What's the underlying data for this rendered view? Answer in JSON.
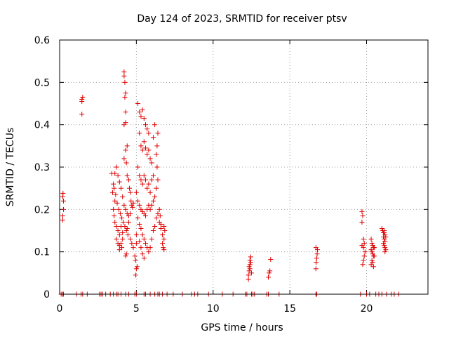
{
  "chart_data": {
    "type": "scatter",
    "title": "Day 124 of 2023, SRMTID for receiver ptsv",
    "xlabel": "GPS time / hours",
    "ylabel": "SRMTID / TECUs",
    "xlim": [
      0,
      24
    ],
    "ylim": [
      0,
      0.6
    ],
    "x_ticks": [
      0,
      5,
      10,
      15,
      20
    ],
    "y_ticks": [
      0,
      0.1,
      0.2,
      0.3,
      0.4,
      0.5,
      0.6
    ],
    "x_tick_labels": [
      "0",
      "5",
      "10",
      "15",
      "20"
    ],
    "y_tick_labels": [
      "0",
      "0.1",
      "0.2",
      "0.3",
      "0.4",
      "0.5",
      "0.6"
    ],
    "grid": true,
    "marker": "plus",
    "color": "#e00000",
    "series": [
      {
        "name": "SRMTID",
        "points": [
          [
            0.1,
            0.0
          ],
          [
            0.2,
            0.0
          ],
          [
            0.25,
            0.0
          ],
          [
            0.2,
            0.175
          ],
          [
            0.2,
            0.185
          ],
          [
            0.25,
            0.2
          ],
          [
            0.25,
            0.22
          ],
          [
            0.2,
            0.23
          ],
          [
            0.22,
            0.238
          ],
          [
            1.1,
            0.0
          ],
          [
            1.4,
            0.0
          ],
          [
            1.5,
            0.0
          ],
          [
            1.8,
            0.0
          ],
          [
            2.6,
            0.0
          ],
          [
            2.7,
            0.0
          ],
          [
            2.8,
            0.0
          ],
          [
            3.0,
            0.0
          ],
          [
            1.45,
            0.425
          ],
          [
            1.45,
            0.455
          ],
          [
            1.45,
            0.46
          ],
          [
            1.5,
            0.465
          ],
          [
            3.3,
            0.0
          ],
          [
            3.5,
            0.0
          ],
          [
            3.7,
            0.0
          ],
          [
            3.8,
            0.0
          ],
          [
            4.0,
            0.0
          ],
          [
            4.3,
            0.0
          ],
          [
            4.5,
            0.0
          ],
          [
            4.9,
            0.0
          ],
          [
            5.0,
            0.0
          ],
          [
            5.5,
            0.0
          ],
          [
            5.6,
            0.0
          ],
          [
            5.9,
            0.0
          ],
          [
            6.2,
            0.0
          ],
          [
            6.4,
            0.0
          ],
          [
            6.5,
            0.0
          ],
          [
            6.7,
            0.0
          ],
          [
            7.0,
            0.0
          ],
          [
            7.4,
            0.0
          ],
          [
            8.0,
            0.0
          ],
          [
            8.6,
            0.0
          ],
          [
            8.8,
            0.0
          ],
          [
            9.0,
            0.0
          ],
          [
            9.7,
            0.0
          ],
          [
            10.6,
            0.0
          ],
          [
            11.3,
            0.0
          ],
          [
            12.1,
            0.0
          ],
          [
            12.2,
            0.0
          ],
          [
            12.5,
            0.0
          ],
          [
            12.6,
            0.0
          ],
          [
            12.7,
            0.0
          ],
          [
            13.5,
            0.0
          ],
          [
            13.6,
            0.0
          ],
          [
            14.3,
            0.0
          ],
          [
            16.7,
            0.0
          ],
          [
            16.75,
            0.0
          ],
          [
            19.6,
            0.0
          ],
          [
            20.0,
            0.0
          ],
          [
            20.2,
            0.0
          ],
          [
            20.6,
            0.0
          ],
          [
            20.8,
            0.0
          ],
          [
            21.0,
            0.0
          ],
          [
            21.3,
            0.0
          ],
          [
            21.6,
            0.0
          ],
          [
            21.8,
            0.0
          ],
          [
            22.1,
            0.0
          ],
          [
            4.2,
            0.525
          ],
          [
            4.2,
            0.515
          ],
          [
            4.25,
            0.5
          ],
          [
            4.3,
            0.475
          ],
          [
            4.25,
            0.465
          ],
          [
            4.3,
            0.43
          ],
          [
            4.2,
            0.4
          ],
          [
            4.3,
            0.405
          ],
          [
            3.4,
            0.285
          ],
          [
            3.5,
            0.26
          ],
          [
            3.45,
            0.24
          ],
          [
            3.6,
            0.22
          ],
          [
            3.5,
            0.2
          ],
          [
            3.55,
            0.185
          ],
          [
            3.6,
            0.17
          ],
          [
            3.7,
            0.16
          ],
          [
            3.8,
            0.15
          ],
          [
            3.9,
            0.14
          ],
          [
            4.0,
            0.12
          ],
          [
            4.05,
            0.11
          ],
          [
            3.9,
            0.105
          ],
          [
            4.1,
            0.13
          ],
          [
            3.6,
            0.285
          ],
          [
            3.7,
            0.3
          ],
          [
            3.8,
            0.28
          ],
          [
            3.9,
            0.265
          ],
          [
            4.0,
            0.25
          ],
          [
            4.1,
            0.23
          ],
          [
            4.2,
            0.21
          ],
          [
            4.3,
            0.2
          ],
          [
            4.4,
            0.19
          ],
          [
            4.5,
            0.185
          ],
          [
            3.55,
            0.25
          ],
          [
            3.65,
            0.235
          ],
          [
            3.75,
            0.215
          ],
          [
            3.85,
            0.2
          ],
          [
            3.95,
            0.19
          ],
          [
            4.05,
            0.18
          ],
          [
            4.15,
            0.17
          ],
          [
            4.25,
            0.16
          ],
          [
            4.35,
            0.15
          ],
          [
            4.45,
            0.14
          ],
          [
            3.7,
            0.13
          ],
          [
            3.8,
            0.12
          ],
          [
            3.9,
            0.115
          ],
          [
            4.0,
            0.16
          ],
          [
            4.1,
            0.145
          ],
          [
            4.2,
            0.32
          ],
          [
            4.3,
            0.34
          ],
          [
            4.4,
            0.35
          ],
          [
            4.35,
            0.31
          ],
          [
            4.4,
            0.28
          ],
          [
            4.5,
            0.27
          ],
          [
            4.55,
            0.25
          ],
          [
            4.6,
            0.24
          ],
          [
            4.65,
            0.22
          ],
          [
            4.7,
            0.21
          ],
          [
            4.75,
            0.205
          ],
          [
            4.8,
            0.215
          ],
          [
            4.6,
            0.19
          ],
          [
            4.5,
            0.17
          ],
          [
            4.4,
            0.155
          ],
          [
            4.3,
            0.09
          ],
          [
            4.35,
            0.095
          ],
          [
            4.6,
            0.13
          ],
          [
            4.7,
            0.12
          ],
          [
            4.8,
            0.11
          ],
          [
            4.9,
            0.09
          ],
          [
            4.95,
            0.08
          ],
          [
            5.0,
            0.06
          ],
          [
            4.95,
            0.045
          ],
          [
            5.05,
            0.065
          ],
          [
            5.1,
            0.45
          ],
          [
            5.2,
            0.43
          ],
          [
            5.3,
            0.42
          ],
          [
            5.4,
            0.435
          ],
          [
            5.5,
            0.415
          ],
          [
            5.6,
            0.4
          ],
          [
            5.7,
            0.39
          ],
          [
            5.8,
            0.38
          ],
          [
            5.2,
            0.38
          ],
          [
            5.3,
            0.35
          ],
          [
            5.4,
            0.34
          ],
          [
            5.5,
            0.36
          ],
          [
            5.6,
            0.345
          ],
          [
            5.7,
            0.33
          ],
          [
            5.8,
            0.34
          ],
          [
            5.9,
            0.32
          ],
          [
            6.0,
            0.31
          ],
          [
            5.1,
            0.3
          ],
          [
            5.2,
            0.28
          ],
          [
            5.3,
            0.27
          ],
          [
            5.4,
            0.26
          ],
          [
            5.5,
            0.28
          ],
          [
            5.6,
            0.27
          ],
          [
            5.7,
            0.25
          ],
          [
            5.8,
            0.26
          ],
          [
            5.9,
            0.24
          ],
          [
            6.0,
            0.27
          ],
          [
            6.1,
            0.28
          ],
          [
            5.0,
            0.24
          ],
          [
            5.1,
            0.22
          ],
          [
            5.2,
            0.21
          ],
          [
            5.3,
            0.2
          ],
          [
            5.4,
            0.195
          ],
          [
            5.5,
            0.19
          ],
          [
            5.6,
            0.185
          ],
          [
            5.7,
            0.2
          ],
          [
            5.8,
            0.21
          ],
          [
            5.9,
            0.2
          ],
          [
            6.0,
            0.21
          ],
          [
            6.1,
            0.22
          ],
          [
            6.2,
            0.23
          ],
          [
            6.3,
            0.25
          ],
          [
            6.4,
            0.27
          ],
          [
            6.35,
            0.3
          ],
          [
            6.3,
            0.33
          ],
          [
            6.35,
            0.35
          ],
          [
            6.4,
            0.38
          ],
          [
            6.2,
            0.4
          ],
          [
            6.1,
            0.37
          ],
          [
            5.1,
            0.18
          ],
          [
            5.2,
            0.165
          ],
          [
            5.3,
            0.155
          ],
          [
            5.4,
            0.14
          ],
          [
            5.5,
            0.13
          ],
          [
            5.6,
            0.12
          ],
          [
            5.7,
            0.11
          ],
          [
            5.8,
            0.1
          ],
          [
            5.9,
            0.11
          ],
          [
            6.0,
            0.13
          ],
          [
            6.1,
            0.15
          ],
          [
            6.2,
            0.16
          ],
          [
            6.3,
            0.18
          ],
          [
            6.4,
            0.19
          ],
          [
            6.5,
            0.17
          ],
          [
            6.6,
            0.165
          ],
          [
            6.5,
            0.2
          ],
          [
            6.55,
            0.185
          ],
          [
            6.6,
            0.155
          ],
          [
            6.7,
            0.14
          ],
          [
            6.8,
            0.16
          ],
          [
            6.85,
            0.15
          ],
          [
            6.8,
            0.13
          ],
          [
            6.7,
            0.12
          ],
          [
            6.75,
            0.11
          ],
          [
            6.8,
            0.105
          ],
          [
            5.2,
            0.125
          ],
          [
            5.3,
            0.11
          ],
          [
            5.4,
            0.095
          ],
          [
            5.5,
            0.085
          ],
          [
            5.0,
            0.14
          ],
          [
            5.0,
            0.12
          ],
          [
            12.3,
            0.035
          ],
          [
            12.3,
            0.045
          ],
          [
            12.35,
            0.055
          ],
          [
            12.4,
            0.06
          ],
          [
            12.35,
            0.065
          ],
          [
            12.4,
            0.07
          ],
          [
            12.45,
            0.075
          ],
          [
            12.4,
            0.08
          ],
          [
            12.45,
            0.088
          ],
          [
            12.5,
            0.05
          ],
          [
            13.6,
            0.04
          ],
          [
            13.65,
            0.05
          ],
          [
            13.7,
            0.055
          ],
          [
            13.75,
            0.082
          ],
          [
            16.7,
            0.06
          ],
          [
            16.72,
            0.075
          ],
          [
            16.75,
            0.085
          ],
          [
            16.78,
            0.095
          ],
          [
            16.8,
            0.105
          ],
          [
            16.7,
            0.11
          ],
          [
            19.7,
            0.195
          ],
          [
            19.75,
            0.185
          ],
          [
            19.7,
            0.17
          ],
          [
            19.8,
            0.13
          ],
          [
            19.85,
            0.12
          ],
          [
            19.8,
            0.11
          ],
          [
            19.9,
            0.1
          ],
          [
            19.85,
            0.09
          ],
          [
            19.8,
            0.08
          ],
          [
            19.75,
            0.07
          ],
          [
            19.7,
            0.115
          ],
          [
            20.3,
            0.13
          ],
          [
            20.35,
            0.12
          ],
          [
            20.4,
            0.115
          ],
          [
            20.45,
            0.11
          ],
          [
            20.3,
            0.105
          ],
          [
            20.35,
            0.1
          ],
          [
            20.4,
            0.095
          ],
          [
            20.45,
            0.09
          ],
          [
            20.35,
            0.08
          ],
          [
            20.4,
            0.075
          ],
          [
            20.3,
            0.07
          ],
          [
            20.45,
            0.065
          ],
          [
            20.5,
            0.11
          ],
          [
            20.5,
            0.09
          ],
          [
            21.0,
            0.155
          ],
          [
            21.05,
            0.15
          ],
          [
            21.1,
            0.145
          ],
          [
            21.15,
            0.15
          ],
          [
            21.2,
            0.14
          ],
          [
            21.1,
            0.135
          ],
          [
            21.15,
            0.13
          ],
          [
            21.2,
            0.125
          ],
          [
            21.1,
            0.12
          ],
          [
            21.15,
            0.115
          ],
          [
            21.2,
            0.11
          ],
          [
            21.25,
            0.105
          ],
          [
            21.2,
            0.1
          ],
          [
            21.15,
            0.145
          ],
          [
            21.25,
            0.135
          ]
        ]
      }
    ]
  }
}
